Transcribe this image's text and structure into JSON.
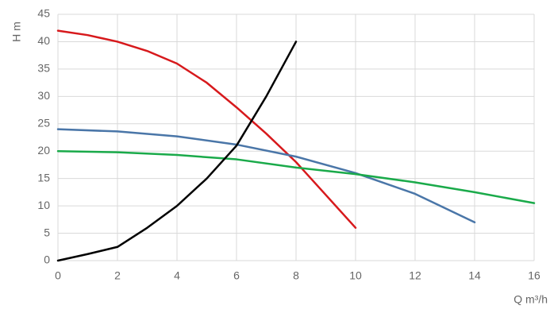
{
  "chart_data": {
    "type": "line",
    "y_label": "H m",
    "x_label": "Q m³/h",
    "xlim": [
      0,
      16
    ],
    "xticks": [
      0,
      2,
      4,
      6,
      8,
      10,
      12,
      14,
      16
    ],
    "ylim": [
      0,
      45
    ],
    "yticks": [
      0,
      5,
      10,
      15,
      20,
      25,
      30,
      35,
      40,
      45
    ],
    "grid": true,
    "series": [
      {
        "color": "#d7191c",
        "x": [
          0,
          1,
          2,
          3,
          4,
          5,
          6,
          7,
          8,
          9,
          10
        ],
        "values": [
          42,
          41.2,
          40,
          38.3,
          36,
          32.5,
          28,
          23.2,
          18,
          12,
          6
        ]
      },
      {
        "color": "#4a76a8",
        "x": [
          0,
          2,
          4,
          6,
          8,
          10,
          12,
          14
        ],
        "values": [
          24,
          23.6,
          22.7,
          21.2,
          19,
          16,
          12.2,
          7
        ]
      },
      {
        "color": "#1aaa4a",
        "x": [
          0,
          2,
          4,
          6,
          8,
          10,
          12,
          14,
          16
        ],
        "values": [
          20,
          19.8,
          19.3,
          18.5,
          17,
          15.8,
          14.3,
          12.5,
          10.5
        ]
      },
      {
        "color": "#000000",
        "x": [
          0,
          1,
          2,
          3,
          4,
          5,
          6,
          7,
          8
        ],
        "values": [
          0,
          1.2,
          2.5,
          6,
          10,
          15,
          21,
          30,
          40
        ]
      }
    ]
  }
}
